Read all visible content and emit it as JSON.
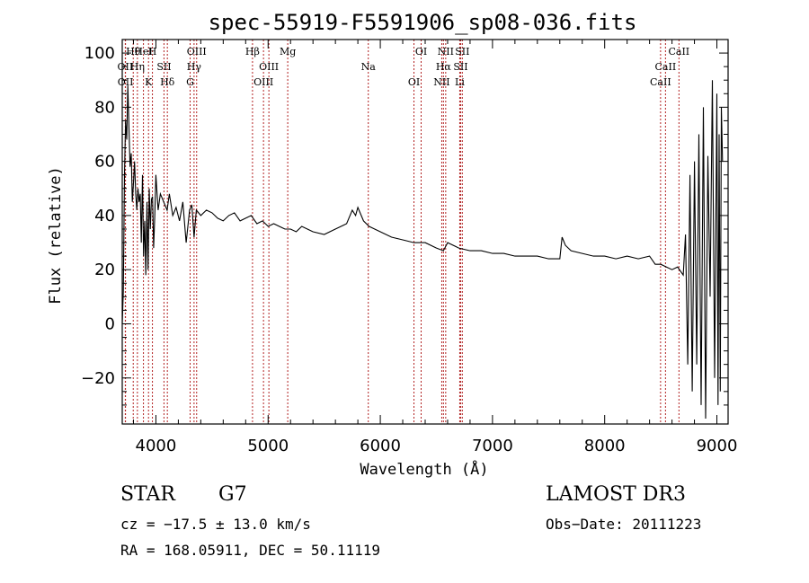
{
  "chart_data": {
    "type": "line",
    "title": "spec-55919-F5591906_sp08-036.fits",
    "xlabel": "Wavelength (Å)",
    "ylabel": "Flux (relative)",
    "xlim": [
      3700,
      9100
    ],
    "ylim": [
      -37,
      105
    ],
    "xticks": [
      4000,
      5000,
      6000,
      7000,
      8000,
      9000
    ],
    "yticks": [
      -20,
      0,
      20,
      40,
      60,
      80,
      100
    ],
    "grid": false,
    "series": [
      {
        "name": "flux",
        "x": [
          3700,
          3710,
          3720,
          3730,
          3740,
          3750,
          3760,
          3770,
          3780,
          3790,
          3800,
          3810,
          3820,
          3830,
          3840,
          3850,
          3860,
          3870,
          3880,
          3890,
          3900,
          3910,
          3920,
          3930,
          3940,
          3950,
          3960,
          3970,
          3980,
          3990,
          4000,
          4020,
          4040,
          4060,
          4080,
          4100,
          4120,
          4150,
          4180,
          4210,
          4240,
          4270,
          4300,
          4320,
          4340,
          4360,
          4400,
          4450,
          4500,
          4550,
          4600,
          4650,
          4700,
          4750,
          4800,
          4850,
          4900,
          4950,
          5000,
          5050,
          5100,
          5150,
          5200,
          5250,
          5300,
          5400,
          5500,
          5600,
          5650,
          5700,
          5750,
          5780,
          5800,
          5850,
          5900,
          5950,
          6000,
          6100,
          6200,
          6300,
          6400,
          6500,
          6563,
          6600,
          6700,
          6800,
          6900,
          7000,
          7100,
          7200,
          7300,
          7400,
          7500,
          7600,
          7620,
          7650,
          7700,
          7800,
          7900,
          8000,
          8100,
          8200,
          8300,
          8400,
          8450,
          8500,
          8550,
          8600,
          8650,
          8700,
          8720,
          8740,
          8760,
          8780,
          8800,
          8820,
          8840,
          8860,
          8880,
          8900,
          8920,
          8940,
          8960,
          8980,
          9000,
          9010,
          9020,
          9030,
          9040,
          9050
        ],
        "values": [
          0,
          12,
          55,
          75,
          68,
          88,
          72,
          58,
          63,
          45,
          52,
          60,
          48,
          42,
          50,
          45,
          48,
          30,
          55,
          25,
          38,
          18,
          45,
          20,
          50,
          35,
          46,
          47,
          28,
          40,
          55,
          42,
          48,
          46,
          44,
          42,
          48,
          40,
          43,
          38,
          45,
          30,
          42,
          44,
          32,
          42,
          40,
          42,
          41,
          39,
          38,
          40,
          41,
          38,
          39,
          40,
          37,
          38,
          36,
          37,
          36,
          35,
          35,
          34,
          36,
          34,
          33,
          35,
          36,
          37,
          42,
          40,
          43,
          38,
          36,
          35,
          34,
          32,
          31,
          30,
          30,
          28,
          27,
          30,
          28,
          27,
          27,
          26,
          26,
          25,
          25,
          25,
          24,
          24,
          32,
          29,
          27,
          26,
          25,
          25,
          24,
          25,
          24,
          25,
          22,
          22,
          21,
          20,
          21,
          18,
          33,
          -15,
          55,
          -25,
          60,
          -15,
          70,
          -30,
          80,
          -35,
          62,
          10,
          90,
          -20,
          85,
          -30,
          70,
          -25,
          80,
          60
        ]
      }
    ],
    "line_markers": [
      {
        "label": "Hθ",
        "wavelength": 3798
      },
      {
        "label": "OII",
        "wavelength": 3727
      },
      {
        "label": "OII",
        "wavelength": 3729
      },
      {
        "label": "HeI",
        "wavelength": 3889
      },
      {
        "label": "Hη",
        "wavelength": 3835
      },
      {
        "label": "K",
        "wavelength": 3934
      },
      {
        "label": "H",
        "wavelength": 3969
      },
      {
        "label": "SII",
        "wavelength": 4072
      },
      {
        "label": "Hδ",
        "wavelength": 4102
      },
      {
        "label": "OIII",
        "wavelength": 4363
      },
      {
        "label": "Hγ",
        "wavelength": 4340
      },
      {
        "label": "G",
        "wavelength": 4305
      },
      {
        "label": "Hβ",
        "wavelength": 4861
      },
      {
        "label": "OIII",
        "wavelength": 5007
      },
      {
        "label": "OIII",
        "wavelength": 4959
      },
      {
        "label": "Mg",
        "wavelength": 5175
      },
      {
        "label": "Na",
        "wavelength": 5893
      },
      {
        "label": "OI",
        "wavelength": 6300
      },
      {
        "label": "OI",
        "wavelength": 6364
      },
      {
        "label": "Hα",
        "wavelength": 6563
      },
      {
        "label": "NII",
        "wavelength": 6548
      },
      {
        "label": "NII",
        "wavelength": 6583
      },
      {
        "label": "SII",
        "wavelength": 6716
      },
      {
        "label": "Li",
        "wavelength": 6708
      },
      {
        "label": "SII",
        "wavelength": 6731
      },
      {
        "label": "CaII",
        "wavelength": 8542
      },
      {
        "label": "CaII",
        "wavelength": 8498
      },
      {
        "label": "CaII",
        "wavelength": 8662
      }
    ]
  },
  "info": {
    "class": "STAR",
    "subclass": "G7",
    "survey": "LAMOST DR3",
    "velocity": "cz = −17.5 ± 13.0 km/s",
    "obs_date": "Obs−Date: 20111223",
    "coords": "RA = 168.05911, DEC =  50.11119"
  }
}
